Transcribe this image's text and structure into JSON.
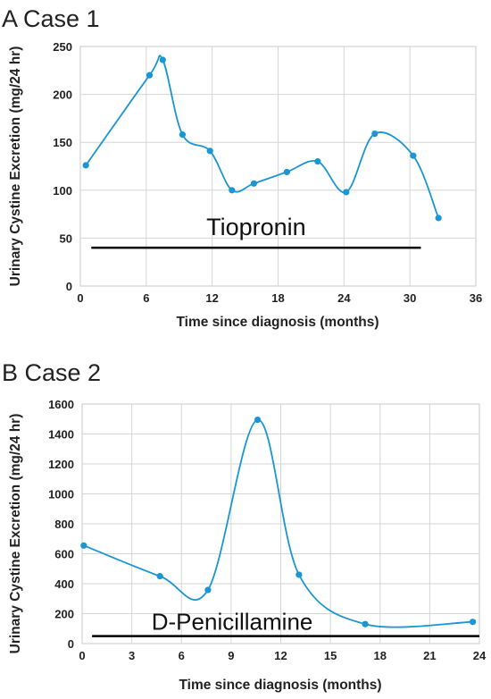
{
  "chart_data": [
    {
      "type": "line",
      "panel_label": "A Case 1",
      "xlabel": "Time since diagnosis (months)",
      "ylabel": "Urinary Cystine Excretion (mg/24 hr)",
      "xlim": [
        0,
        36
      ],
      "ylim": [
        0,
        250
      ],
      "xticks": [
        0,
        6,
        12,
        18,
        24,
        30,
        36
      ],
      "yticks": [
        0,
        50,
        100,
        150,
        200,
        250
      ],
      "grid": true,
      "line_color": "#1a96d2",
      "series": [
        {
          "x": [
            0.5,
            6.3,
            7.5,
            9.3,
            11.8,
            13.8,
            15.8,
            18.8,
            21.6,
            24.2,
            26.8,
            30.3,
            32.6
          ],
          "values": [
            126,
            220,
            236,
            158,
            141,
            100,
            107,
            119,
            130,
            98,
            159,
            136,
            71
          ]
        }
      ],
      "treatment_bar": {
        "label": "Tiopronin",
        "x_start": 1,
        "x_end": 31,
        "y": 40,
        "color": "#000000"
      }
    },
    {
      "type": "line",
      "panel_label": "B Case 2",
      "xlabel": "Time since diagnosis (months)",
      "ylabel": "Urinary Cystine Excretion (mg/24 hr)",
      "xlim": [
        0,
        24
      ],
      "ylim": [
        0,
        1600
      ],
      "xticks": [
        0,
        3,
        6,
        9,
        12,
        15,
        18,
        21,
        24
      ],
      "yticks": [
        0,
        200,
        400,
        600,
        800,
        1000,
        1200,
        1400,
        1600
      ],
      "grid": true,
      "line_color": "#1a96d2",
      "series": [
        {
          "x": [
            0.1,
            4.7,
            7.6,
            10.6,
            13.1,
            17.1,
            23.6
          ],
          "values": [
            655,
            450,
            358,
            1495,
            460,
            130,
            145
          ]
        }
      ],
      "treatment_bar": {
        "label": "D-Penicillamine",
        "x_start": 0.6,
        "x_end": 24,
        "y": 50,
        "color": "#000000"
      }
    }
  ]
}
